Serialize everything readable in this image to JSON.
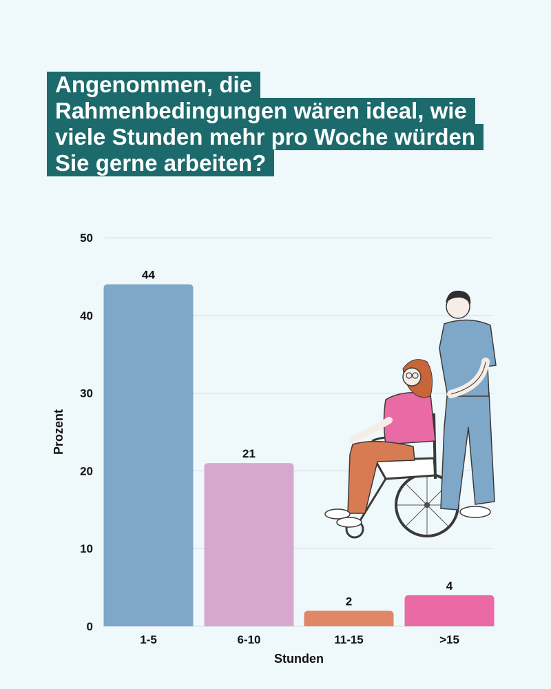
{
  "title_lines": [
    "Angenommen, die",
    "Rahmenbedingungen wären ideal, wie",
    "viele Stunden mehr pro Woche würden",
    "Sie gerne arbeiten?"
  ],
  "chart_data": {
    "type": "bar",
    "title": "Angenommen, die Rahmenbedingungen wären ideal, wie viele Stunden mehr pro Woche würden Sie gerne arbeiten?",
    "categories": [
      "1-5",
      "6-10",
      "11-15",
      ">15"
    ],
    "values": [
      44,
      21,
      2,
      4
    ],
    "value_labels": [
      "44",
      "21",
      "2",
      "4"
    ],
    "colors": [
      "#7fa7c8",
      "#d7a8cf",
      "#e08766",
      "#ea6aa5"
    ],
    "xlabel": "Stunden",
    "ylabel": "Prozent",
    "ylim": [
      0,
      50
    ],
    "yticks": [
      0,
      10,
      20,
      30,
      40,
      50
    ],
    "ytick_labels": [
      "0",
      "10",
      "20",
      "30",
      "40",
      "50"
    ],
    "grid": true,
    "legend": "none"
  },
  "illustration": {
    "icon": "nurse-pushing-wheelchair-illustration",
    "colors": {
      "scrubs": "#7fa7c8",
      "shirt": "#ea6aa5",
      "pants": "#d87b52",
      "hair": "#c8663a",
      "wheel": "#3a3a3a",
      "skin": "#f6ede6"
    }
  }
}
